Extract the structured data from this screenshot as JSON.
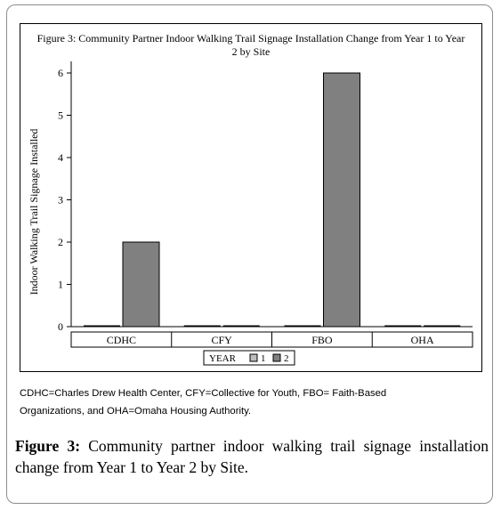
{
  "chart_data": {
    "type": "bar",
    "title": "Figure 3: Community Partner Indoor Walking Trail Signage Installation Change from Year 1 to Year 2 by Site",
    "title_lines": [
      "Figure 3: Community Partner Indoor Walking Trail Signage Installation Change from Year 1 to Year",
      "2 by Site"
    ],
    "ylabel": "Indoor Walking Trail Signage Installed",
    "xlabel": "",
    "categories": [
      "CDHC",
      "CFY",
      "FBO",
      "OHA"
    ],
    "series": [
      {
        "name": "1",
        "values": [
          0,
          0,
          0,
          0
        ],
        "color": "#bdbdbd"
      },
      {
        "name": "2",
        "values": [
          2,
          0,
          6,
          0
        ],
        "color": "#808080"
      }
    ],
    "ylim": [
      0,
      6
    ],
    "yticks": [
      0,
      1,
      2,
      3,
      4,
      5,
      6
    ],
    "legend": {
      "title": "YEAR",
      "placement": "bottom"
    },
    "grid": false
  },
  "footnote": {
    "line1": "CDHC=Charles Drew Health Center, CFY=Collective for Youth, FBO= Faith-Based",
    "line2": "Organizations, and OHA=Omaha Housing Authority."
  },
  "caption": {
    "label": "Figure 3:",
    "text": " Community partner indoor walking trail signage installation change from Year 1 to Year 2 by Site."
  }
}
